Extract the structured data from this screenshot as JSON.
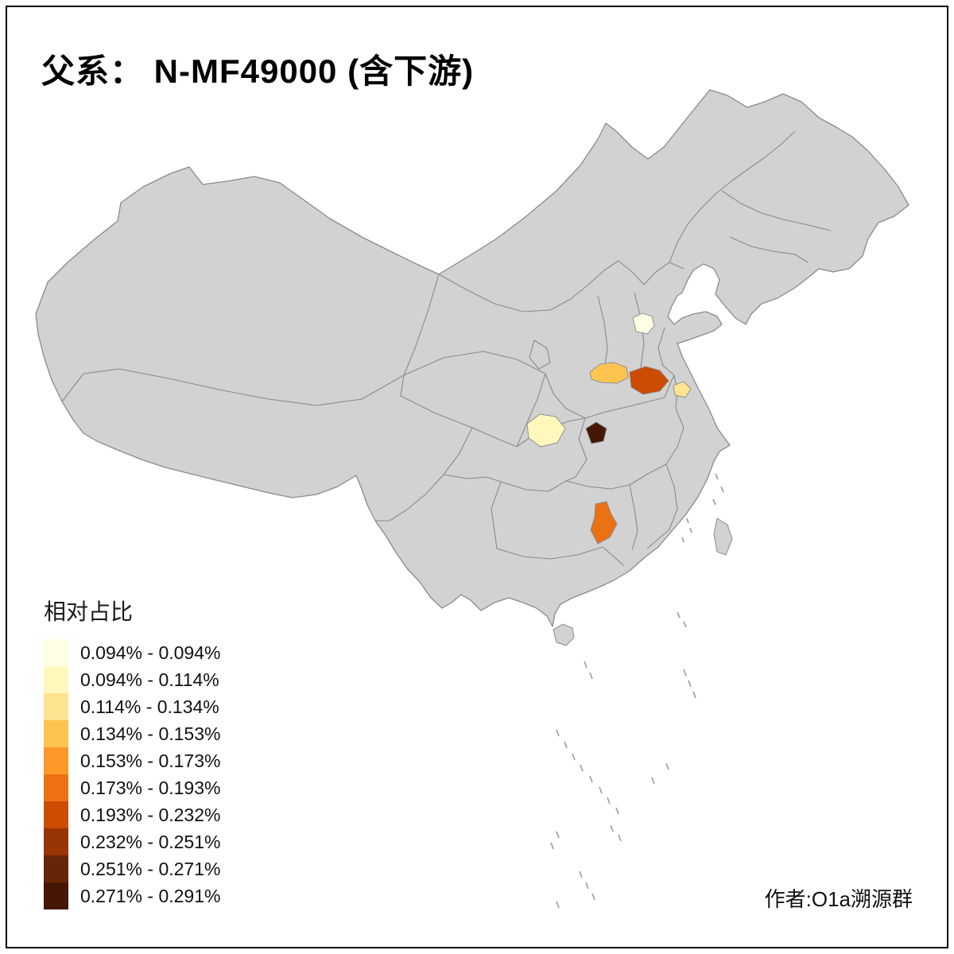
{
  "title": "父系： N-MF49000 (含下游)",
  "legend": {
    "title": "相对占比",
    "classes": [
      {
        "range": "0.094% - 0.094%",
        "color": "#FFFFE5"
      },
      {
        "range": "0.094% - 0.114%",
        "color": "#FFF7BC"
      },
      {
        "range": "0.114% - 0.134%",
        "color": "#FEE391"
      },
      {
        "range": "0.134% - 0.153%",
        "color": "#FEC44F"
      },
      {
        "range": "0.153% - 0.173%",
        "color": "#FE9929"
      },
      {
        "range": "0.173% - 0.193%",
        "color": "#EC7014"
      },
      {
        "range": "0.193% - 0.232%",
        "color": "#CC4C02"
      },
      {
        "range": "0.232% - 0.251%",
        "color": "#993404"
      },
      {
        "range": "0.251% - 0.271%",
        "color": "#662506"
      },
      {
        "range": "0.271% - 0.291%",
        "color": "#451704"
      }
    ]
  },
  "map": {
    "base_fill": "#D2D2D2",
    "border_color": "#8A8A8A",
    "background": "#FFFFFF",
    "regions": [
      {
        "id": "region-1",
        "legend_class": "0.094% - 0.094%",
        "color": "#FFFFE5"
      },
      {
        "id": "region-2",
        "legend_class": "0.094% - 0.114%",
        "color": "#FFF7BC"
      },
      {
        "id": "region-3",
        "legend_class": "0.114% - 0.134%",
        "color": "#FEE391"
      },
      {
        "id": "region-4",
        "legend_class": "0.134% - 0.153%",
        "color": "#FEC44F"
      },
      {
        "id": "region-5",
        "legend_class": "0.173% - 0.193%",
        "color": "#EC7014"
      },
      {
        "id": "region-6",
        "legend_class": "0.193% - 0.232%",
        "color": "#CC4C02"
      },
      {
        "id": "region-7",
        "legend_class": "0.271% - 0.291%",
        "color": "#451704"
      }
    ]
  },
  "credit": "作者:O1a溯源群"
}
